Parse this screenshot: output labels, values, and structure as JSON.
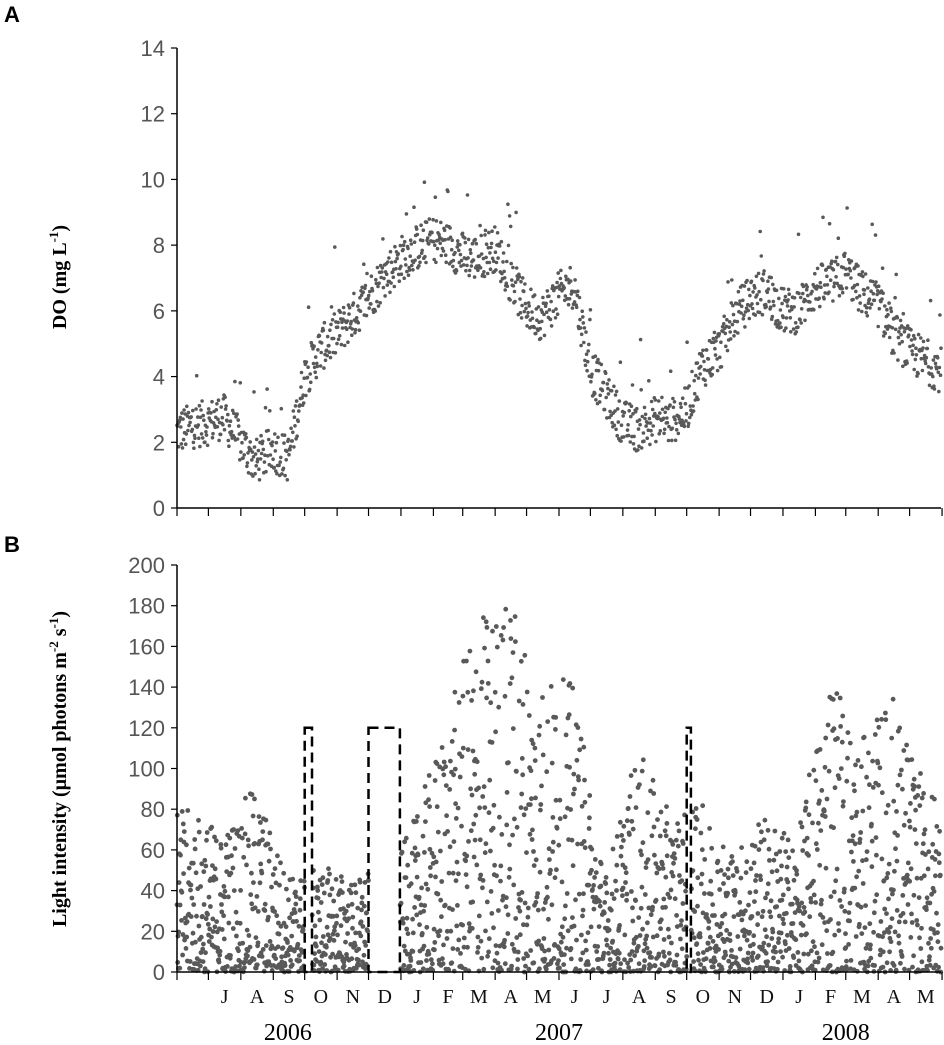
{
  "panels": {
    "a_label": "A",
    "b_label": "B"
  },
  "chart_data": [
    {
      "type": "scatter",
      "panel": "A",
      "title": "",
      "ylabel_main": "DO (mg L",
      "ylabel_sup": "-1",
      "ylabel_end": ")",
      "ylim": [
        0,
        14
      ],
      "yticks": [
        "0",
        "2",
        "4",
        "6",
        "8",
        "10",
        "12",
        "14"
      ],
      "x_range": [
        "2006-06-01",
        "2008-05-31"
      ],
      "series": [
        {
          "x": [
            "2006-06-01",
            "2006-06-15",
            "2006-07-01",
            "2006-07-15",
            "2006-08-01",
            "2006-08-15",
            "2006-09-01",
            "2006-09-15",
            "2006-10-01",
            "2006-10-15",
            "2006-11-01",
            "2006-11-15",
            "2006-12-01",
            "2006-12-15",
            "2007-01-01",
            "2007-01-15",
            "2007-02-01",
            "2007-02-15",
            "2007-03-01",
            "2007-03-15",
            "2007-04-01",
            "2007-04-15",
            "2007-05-01",
            "2007-05-15",
            "2007-06-01",
            "2007-06-15",
            "2007-07-01",
            "2007-07-15",
            "2007-08-01",
            "2007-08-15",
            "2007-09-01",
            "2007-09-15",
            "2007-10-01",
            "2007-10-15",
            "2007-11-01",
            "2007-11-15",
            "2007-12-01",
            "2007-12-15",
            "2008-01-01",
            "2008-01-15",
            "2008-02-01",
            "2008-02-15",
            "2008-03-01",
            "2008-03-15",
            "2008-04-01",
            "2008-04-15",
            "2008-05-01",
            "2008-05-15",
            "2008-05-31"
          ],
          "values": [
            2.3,
            2.5,
            2.6,
            2.8,
            2.0,
            1.4,
            1.8,
            1.5,
            4.0,
            4.8,
            5.3,
            5.8,
            6.4,
            7.0,
            7.6,
            7.9,
            8.2,
            8.0,
            7.7,
            7.6,
            7.9,
            7.0,
            6.1,
            5.8,
            6.5,
            6.8,
            4.2,
            3.5,
            2.6,
            2.4,
            2.7,
            2.6,
            3.0,
            4.3,
            4.8,
            5.8,
            6.4,
            6.6,
            6.0,
            6.0,
            6.7,
            6.8,
            7.2,
            6.6,
            6.2,
            5.3,
            4.8,
            4.5,
            4.2
          ]
        }
      ],
      "x_month_labels": [],
      "grid": false
    },
    {
      "type": "scatter",
      "panel": "B",
      "title": "",
      "ylabel_main": "Light intensity (µmol photons m",
      "ylabel_sup1": "-2",
      "ylabel_mid": " s",
      "ylabel_sup2": "-1",
      "ylabel_end": ")",
      "ylim": [
        0,
        200
      ],
      "yticks": [
        "0",
        "20",
        "40",
        "60",
        "80",
        "100",
        "120",
        "140",
        "160",
        "180",
        "200"
      ],
      "x_range": [
        "2006-06-01",
        "2008-05-31"
      ],
      "series": [
        {
          "x": [
            "2006-06-15",
            "2006-07-15",
            "2006-08-15",
            "2006-09-15",
            "2006-11-01",
            "2006-11-15",
            "2007-01-01",
            "2007-01-15",
            "2007-02-15",
            "2007-03-15",
            "2007-04-15",
            "2007-05-15",
            "2007-06-15",
            "2007-07-15",
            "2007-08-15",
            "2007-09-15",
            "2007-10-15",
            "2007-11-15",
            "2007-12-15",
            "2008-01-15",
            "2008-02-15",
            "2008-03-15",
            "2008-04-15",
            "2008-05-15"
          ],
          "values": [
            80,
            70,
            93,
            48,
            52,
            45,
            60,
            77,
            127,
            177,
            188,
            148,
            143,
            48,
            110,
            78,
            83,
            60,
            78,
            65,
            158,
            113,
            139,
            92
          ]
        }
      ],
      "missing_periods": [
        [
          "2006-10-01",
          "2006-10-08"
        ],
        [
          "2006-12-01",
          "2006-12-31"
        ],
        [
          "2007-10-01",
          "2007-10-05"
        ]
      ],
      "missing_box_value": 120,
      "x_month_labels": [
        "J",
        "A",
        "S",
        "O",
        "N",
        "D",
        "J",
        "F",
        "M",
        "A",
        "M",
        "J",
        "J",
        "A",
        "S",
        "O",
        "N",
        "D",
        "J",
        "F",
        "M",
        "A",
        "M"
      ],
      "year_labels": [
        "2006",
        "2007",
        "2008"
      ],
      "grid": false
    }
  ]
}
